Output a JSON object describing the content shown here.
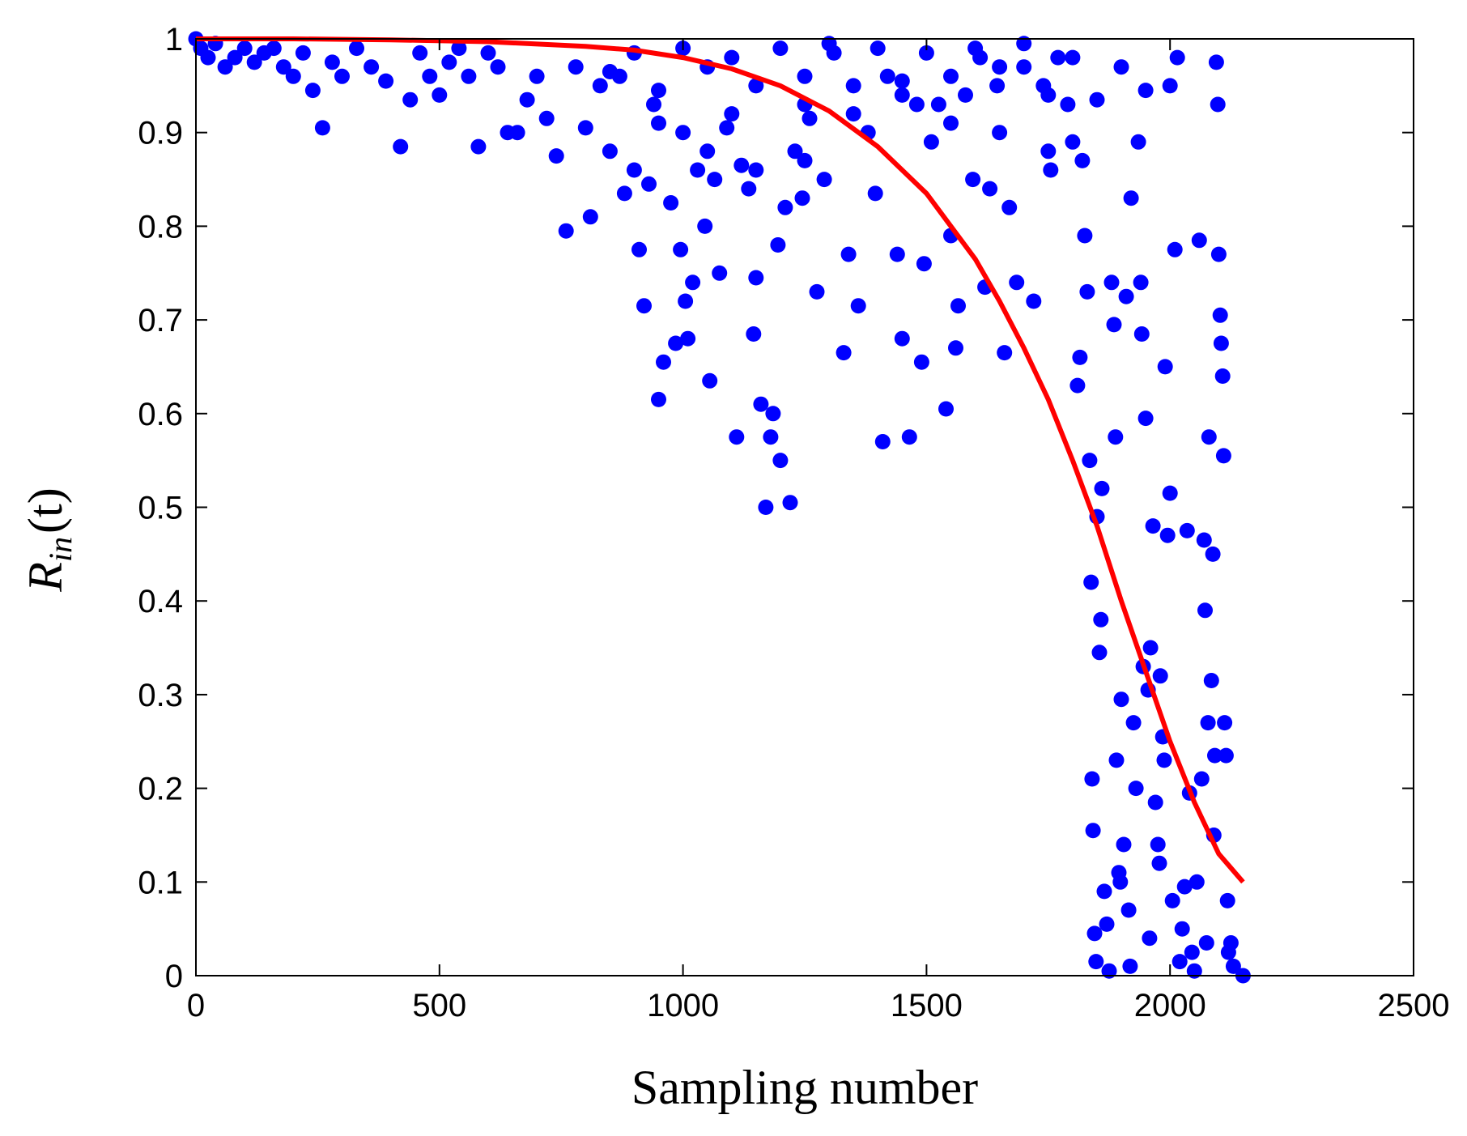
{
  "chart_data": {
    "type": "scatter",
    "title": "",
    "xlabel": "Sampling number",
    "ylabel": {
      "main": "R",
      "sub": "in",
      "suffix": "(t)"
    },
    "xlim": [
      0,
      2500
    ],
    "ylim": [
      0,
      1
    ],
    "xticks": [
      0,
      500,
      1000,
      1500,
      2000,
      2500
    ],
    "yticks": [
      0,
      0.1,
      0.2,
      0.3,
      0.4,
      0.5,
      0.6,
      0.7,
      0.8,
      0.9,
      1
    ],
    "xtick_labels": [
      "0",
      "500",
      "1000",
      "1500",
      "2000",
      "2500"
    ],
    "ytick_labels": [
      "0",
      "0.1",
      "0.2",
      "0.3",
      "0.4",
      "0.5",
      "0.6",
      "0.7",
      "0.8",
      "0.9",
      "1"
    ],
    "grid": false,
    "legend": "none",
    "colors": {
      "scatter": "#0000ff",
      "fit": "#ff0000",
      "axes": "#000000"
    },
    "series": [
      {
        "type": "scatter",
        "points": [
          [
            0,
            1.0
          ],
          [
            10,
            0.99
          ],
          [
            25,
            0.98
          ],
          [
            40,
            0.995
          ],
          [
            60,
            0.97
          ],
          [
            80,
            0.98
          ],
          [
            100,
            0.99
          ],
          [
            120,
            0.975
          ],
          [
            140,
            0.985
          ],
          [
            160,
            0.99
          ],
          [
            180,
            0.97
          ],
          [
            200,
            0.96
          ],
          [
            220,
            0.985
          ],
          [
            240,
            0.945
          ],
          [
            260,
            0.905
          ],
          [
            280,
            0.975
          ],
          [
            300,
            0.96
          ],
          [
            330,
            0.99
          ],
          [
            360,
            0.97
          ],
          [
            390,
            0.955
          ],
          [
            420,
            0.885
          ],
          [
            440,
            0.935
          ],
          [
            460,
            0.985
          ],
          [
            480,
            0.96
          ],
          [
            500,
            0.94
          ],
          [
            520,
            0.975
          ],
          [
            540,
            0.99
          ],
          [
            560,
            0.96
          ],
          [
            580,
            0.885
          ],
          [
            600,
            0.985
          ],
          [
            620,
            0.97
          ],
          [
            640,
            0.9
          ],
          [
            660,
            0.9
          ],
          [
            680,
            0.935
          ],
          [
            700,
            0.96
          ],
          [
            720,
            0.915
          ],
          [
            740,
            0.875
          ],
          [
            760,
            0.795
          ],
          [
            780,
            0.97
          ],
          [
            800,
            0.905
          ],
          [
            810,
            0.81
          ],
          [
            830,
            0.95
          ],
          [
            850,
            0.88
          ],
          [
            870,
            0.96
          ],
          [
            880,
            0.835
          ],
          [
            900,
            0.86
          ],
          [
            910,
            0.775
          ],
          [
            920,
            0.715
          ],
          [
            930,
            0.845
          ],
          [
            940,
            0.93
          ],
          [
            950,
            0.615
          ],
          [
            960,
            0.655
          ],
          [
            975,
            0.825
          ],
          [
            985,
            0.675
          ],
          [
            995,
            0.775
          ],
          [
            1005,
            0.72
          ],
          [
            1010,
            0.68
          ],
          [
            1020,
            0.74
          ],
          [
            1030,
            0.86
          ],
          [
            1045,
            0.8
          ],
          [
            1055,
            0.635
          ],
          [
            1065,
            0.85
          ],
          [
            1075,
            0.75
          ],
          [
            1090,
            0.905
          ],
          [
            1100,
            0.92
          ],
          [
            1110,
            0.575
          ],
          [
            1120,
            0.865
          ],
          [
            1135,
            0.84
          ],
          [
            1145,
            0.685
          ],
          [
            1150,
            0.745
          ],
          [
            1160,
            0.61
          ],
          [
            1170,
            0.5
          ],
          [
            1180,
            0.575
          ],
          [
            1185,
            0.6
          ],
          [
            1195,
            0.78
          ],
          [
            1200,
            0.55
          ],
          [
            1210,
            0.82
          ],
          [
            1220,
            0.505
          ],
          [
            1230,
            0.88
          ],
          [
            1245,
            0.83
          ],
          [
            1260,
            0.915
          ],
          [
            1275,
            0.73
          ],
          [
            1290,
            0.85
          ],
          [
            1310,
            0.985
          ],
          [
            1330,
            0.665
          ],
          [
            1340,
            0.77
          ],
          [
            1360,
            0.715
          ],
          [
            1380,
            0.9
          ],
          [
            1395,
            0.835
          ],
          [
            1410,
            0.57
          ],
          [
            1420,
            0.96
          ],
          [
            1440,
            0.77
          ],
          [
            1450,
            0.68
          ],
          [
            1465,
            0.575
          ],
          [
            1480,
            0.93
          ],
          [
            1490,
            0.655
          ],
          [
            1495,
            0.76
          ],
          [
            1510,
            0.89
          ],
          [
            1525,
            0.93
          ],
          [
            1540,
            0.605
          ],
          [
            1550,
            0.79
          ],
          [
            1560,
            0.67
          ],
          [
            1565,
            0.715
          ],
          [
            1580,
            0.94
          ],
          [
            1595,
            0.85
          ],
          [
            1610,
            0.98
          ],
          [
            1620,
            0.735
          ],
          [
            1630,
            0.84
          ],
          [
            1645,
            0.95
          ],
          [
            1660,
            0.665
          ],
          [
            1670,
            0.82
          ],
          [
            1685,
            0.74
          ],
          [
            1700,
            0.97
          ],
          [
            1720,
            0.72
          ],
          [
            1740,
            0.95
          ],
          [
            1755,
            0.86
          ],
          [
            1770,
            0.98
          ],
          [
            1790,
            0.93
          ],
          [
            1800,
            0.89
          ],
          [
            1810,
            0.63
          ],
          [
            1815,
            0.66
          ],
          [
            1820,
            0.87
          ],
          [
            1825,
            0.79
          ],
          [
            1830,
            0.73
          ],
          [
            1835,
            0.55
          ],
          [
            1838,
            0.42
          ],
          [
            1840,
            0.21
          ],
          [
            1842,
            0.155
          ],
          [
            1845,
            0.045
          ],
          [
            1848,
            0.015
          ],
          [
            1850,
            0.49
          ],
          [
            1855,
            0.345
          ],
          [
            1858,
            0.38
          ],
          [
            1860,
            0.52
          ],
          [
            1865,
            0.09
          ],
          [
            1870,
            0.055
          ],
          [
            1875,
            0.005
          ],
          [
            1880,
            0.74
          ],
          [
            1885,
            0.695
          ],
          [
            1888,
            0.575
          ],
          [
            1890,
            0.23
          ],
          [
            1895,
            0.11
          ],
          [
            1898,
            0.1
          ],
          [
            1900,
            0.295
          ],
          [
            1905,
            0.14
          ],
          [
            1910,
            0.725
          ],
          [
            1915,
            0.07
          ],
          [
            1918,
            0.01
          ],
          [
            1920,
            0.83
          ],
          [
            1925,
            0.27
          ],
          [
            1930,
            0.2
          ],
          [
            1935,
            0.89
          ],
          [
            1940,
            0.74
          ],
          [
            1942,
            0.685
          ],
          [
            1945,
            0.33
          ],
          [
            1950,
            0.595
          ],
          [
            1955,
            0.305
          ],
          [
            1958,
            0.04
          ],
          [
            1960,
            0.35
          ],
          [
            1965,
            0.48
          ],
          [
            1970,
            0.185
          ],
          [
            1975,
            0.14
          ],
          [
            1978,
            0.12
          ],
          [
            1980,
            0.32
          ],
          [
            1985,
            0.255
          ],
          [
            1988,
            0.23
          ],
          [
            1990,
            0.65
          ],
          [
            1995,
            0.47
          ],
          [
            2000,
            0.515
          ],
          [
            2005,
            0.08
          ],
          [
            2010,
            0.775
          ],
          [
            2015,
            0.98
          ],
          [
            2020,
            0.015
          ],
          [
            2025,
            0.05
          ],
          [
            2030,
            0.095
          ],
          [
            2035,
            0.475
          ],
          [
            2040,
            0.195
          ],
          [
            2045,
            0.025
          ],
          [
            2050,
            0.005
          ],
          [
            2055,
            0.1
          ],
          [
            2060,
            0.785
          ],
          [
            2065,
            0.21
          ],
          [
            2070,
            0.465
          ],
          [
            2072,
            0.39
          ],
          [
            2075,
            0.035
          ],
          [
            2078,
            0.27
          ],
          [
            2080,
            0.575
          ],
          [
            2085,
            0.315
          ],
          [
            2088,
            0.45
          ],
          [
            2090,
            0.15
          ],
          [
            2092,
            0.235
          ],
          [
            2095,
            0.975
          ],
          [
            2098,
            0.93
          ],
          [
            2100,
            0.77
          ],
          [
            2103,
            0.705
          ],
          [
            2105,
            0.675
          ],
          [
            2108,
            0.64
          ],
          [
            2110,
            0.555
          ],
          [
            2112,
            0.27
          ],
          [
            2115,
            0.235
          ],
          [
            2118,
            0.08
          ],
          [
            2120,
            0.025
          ],
          [
            2125,
            0.035
          ],
          [
            2130,
            0.01
          ],
          [
            2150,
            0.0
          ],
          [
            1200,
            0.99
          ],
          [
            1300,
            0.995
          ],
          [
            1400,
            0.99
          ],
          [
            1500,
            0.985
          ],
          [
            1600,
            0.99
          ],
          [
            1700,
            0.995
          ],
          [
            1800,
            0.98
          ],
          [
            1900,
            0.97
          ],
          [
            2000,
            0.95
          ],
          [
            1250,
            0.96
          ],
          [
            1350,
            0.95
          ],
          [
            1450,
            0.955
          ],
          [
            1550,
            0.96
          ],
          [
            1650,
            0.97
          ],
          [
            1750,
            0.94
          ],
          [
            1850,
            0.935
          ],
          [
            1950,
            0.945
          ],
          [
            1100,
            0.98
          ],
          [
            1000,
            0.99
          ],
          [
            900,
            0.985
          ],
          [
            850,
            0.965
          ],
          [
            950,
            0.945
          ],
          [
            1050,
            0.97
          ],
          [
            1150,
            0.95
          ],
          [
            1250,
            0.93
          ],
          [
            1350,
            0.92
          ],
          [
            1450,
            0.94
          ],
          [
            1550,
            0.91
          ],
          [
            1650,
            0.9
          ],
          [
            1750,
            0.88
          ],
          [
            1050,
            0.88
          ],
          [
            1150,
            0.86
          ],
          [
            1250,
            0.87
          ],
          [
            1000,
            0.9
          ],
          [
            950,
            0.91
          ]
        ]
      },
      {
        "type": "line",
        "points": [
          [
            0,
            1.0
          ],
          [
            200,
            1.0
          ],
          [
            400,
            0.999
          ],
          [
            600,
            0.997
          ],
          [
            800,
            0.992
          ],
          [
            900,
            0.988
          ],
          [
            1000,
            0.98
          ],
          [
            1100,
            0.968
          ],
          [
            1200,
            0.95
          ],
          [
            1300,
            0.923
          ],
          [
            1400,
            0.885
          ],
          [
            1500,
            0.835
          ],
          [
            1550,
            0.8
          ],
          [
            1600,
            0.765
          ],
          [
            1650,
            0.72
          ],
          [
            1700,
            0.67
          ],
          [
            1750,
            0.615
          ],
          [
            1800,
            0.55
          ],
          [
            1850,
            0.48
          ],
          [
            1900,
            0.4
          ],
          [
            1950,
            0.325
          ],
          [
            2000,
            0.25
          ],
          [
            2050,
            0.185
          ],
          [
            2100,
            0.13
          ],
          [
            2150,
            0.1
          ]
        ]
      }
    ]
  }
}
